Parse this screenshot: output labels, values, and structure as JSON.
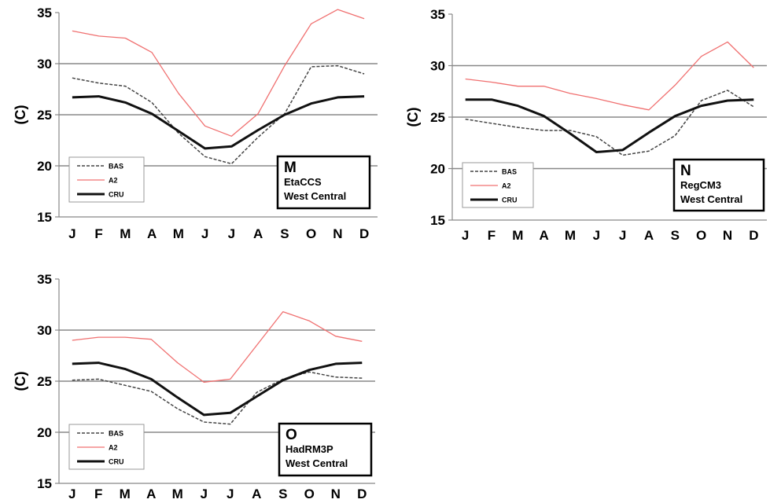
{
  "chart_data": [
    {
      "type": "line",
      "panel_letter": "M",
      "model": "EtaCCS",
      "region": "West Central",
      "ylabel": "(C)",
      "categories": [
        "J",
        "F",
        "M",
        "A",
        "M",
        "J",
        "J",
        "A",
        "S",
        "O",
        "N",
        "D"
      ],
      "yticks": [
        "15",
        "20",
        "25",
        "30",
        "35"
      ],
      "ylim": [
        15,
        35
      ],
      "grid": "horizontal at 20, 25, 30",
      "legend_position": "bottom-left",
      "series": [
        {
          "name": "BAS",
          "style": "dashed",
          "color": "#444444",
          "values": [
            28.6,
            28.1,
            27.8,
            26.2,
            23.2,
            20.9,
            20.2,
            22.8,
            25.1,
            29.7,
            29.8,
            29.0
          ]
        },
        {
          "name": "A2",
          "style": "solid",
          "color": "#f07070",
          "values": [
            33.2,
            32.7,
            32.5,
            31.1,
            27.1,
            23.9,
            22.9,
            25.1,
            29.8,
            33.9,
            35.3,
            34.4
          ]
        },
        {
          "name": "CRU",
          "style": "solid-thick",
          "color": "#111111",
          "values": [
            26.7,
            26.8,
            26.2,
            25.1,
            23.4,
            21.7,
            21.9,
            23.5,
            25.0,
            26.1,
            26.7,
            26.8
          ]
        }
      ]
    },
    {
      "type": "line",
      "panel_letter": "N",
      "model": "RegCM3",
      "region": "West Central",
      "ylabel": "(C)",
      "categories": [
        "J",
        "F",
        "M",
        "A",
        "M",
        "J",
        "J",
        "A",
        "S",
        "O",
        "N",
        "D"
      ],
      "yticks": [
        "15",
        "20",
        "25",
        "30",
        "35"
      ],
      "ylim": [
        15,
        35
      ],
      "grid": "horizontal at 20, 25, 30",
      "legend_position": "bottom-left",
      "series": [
        {
          "name": "BAS",
          "style": "dashed",
          "color": "#444444",
          "values": [
            24.8,
            24.4,
            24.0,
            23.7,
            23.7,
            23.1,
            21.3,
            21.7,
            23.2,
            26.6,
            27.6,
            26.0
          ]
        },
        {
          "name": "A2",
          "style": "solid",
          "color": "#f07070",
          "values": [
            28.7,
            28.4,
            28.0,
            28.0,
            27.3,
            26.8,
            26.2,
            25.7,
            28.1,
            30.9,
            32.3,
            29.8
          ]
        },
        {
          "name": "CRU",
          "style": "solid-thick",
          "color": "#111111",
          "values": [
            26.7,
            26.7,
            26.1,
            25.1,
            23.4,
            21.6,
            21.8,
            23.5,
            25.1,
            26.1,
            26.6,
            26.7
          ]
        }
      ]
    },
    {
      "type": "line",
      "panel_letter": "O",
      "model": "HadRM3P",
      "region": "West Central",
      "ylabel": "(C)",
      "categories": [
        "J",
        "F",
        "M",
        "A",
        "M",
        "J",
        "J",
        "A",
        "S",
        "O",
        "N",
        "D"
      ],
      "yticks": [
        "15",
        "20",
        "25",
        "30",
        "35"
      ],
      "ylim": [
        15,
        35
      ],
      "grid": "horizontal at 20, 25, 30",
      "legend_position": "bottom-left",
      "series": [
        {
          "name": "BAS",
          "style": "dashed",
          "color": "#444444",
          "values": [
            25.1,
            25.2,
            24.6,
            24.0,
            22.3,
            21.0,
            20.8,
            23.9,
            25.2,
            25.9,
            25.4,
            25.3
          ]
        },
        {
          "name": "A2",
          "style": "solid",
          "color": "#f07070",
          "values": [
            29.0,
            29.3,
            29.3,
            29.1,
            26.8,
            24.9,
            25.2,
            28.5,
            31.8,
            30.9,
            29.4,
            28.9
          ]
        },
        {
          "name": "CRU",
          "style": "solid-thick",
          "color": "#111111",
          "values": [
            26.7,
            26.8,
            26.2,
            25.2,
            23.4,
            21.7,
            21.9,
            23.5,
            25.1,
            26.1,
            26.7,
            26.8
          ]
        }
      ]
    }
  ]
}
